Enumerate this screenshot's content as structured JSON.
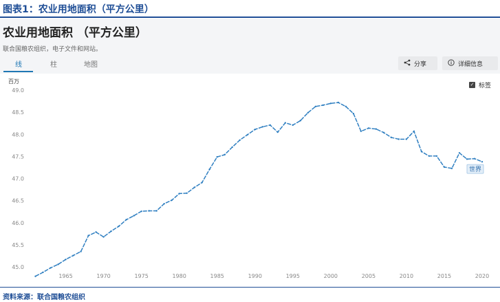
{
  "figure_title": "图表1：农业用地面积（平方公里）",
  "page_title": "农业用地面积 （平方公里）",
  "source": "联合国粮农组织，电子文件和网站。",
  "tabs": [
    {
      "label": "线",
      "active": true
    },
    {
      "label": "柱",
      "active": false
    },
    {
      "label": "地图",
      "active": false
    }
  ],
  "toolbar": {
    "share": "分享",
    "details": "详细信息",
    "share_icon": "share-icon",
    "details_icon": "info-icon"
  },
  "label_toggle": {
    "label": "标签",
    "checked": true
  },
  "footer": "资料来源：联合国粮农组织",
  "colors": {
    "line": "#2f7fc1",
    "title": "#1f4e96",
    "accent": "#1f77b4"
  },
  "chart_data": {
    "type": "line",
    "ylabel": "百万",
    "ylim": [
      44.8,
      49.0
    ],
    "yticks": [
      "49.0",
      "48.5",
      "48.0",
      "47.5",
      "47.0",
      "46.5",
      "46.0",
      "45.5",
      "45.0"
    ],
    "xlim": [
      1960.5,
      2021
    ],
    "xticks": [
      "1965",
      "1970",
      "1975",
      "1980",
      "1985",
      "1990",
      "1995",
      "2000",
      "2005",
      "2010",
      "2015",
      "2020"
    ],
    "grid": false,
    "series": [
      {
        "name": "世界",
        "x": [
          1961,
          1962,
          1963,
          1964,
          1965,
          1966,
          1967,
          1968,
          1969,
          1970,
          1971,
          1972,
          1973,
          1974,
          1975,
          1976,
          1977,
          1978,
          1979,
          1980,
          1981,
          1982,
          1983,
          1984,
          1985,
          1986,
          1987,
          1988,
          1989,
          1990,
          1991,
          1992,
          1993,
          1994,
          1995,
          1996,
          1997,
          1998,
          1999,
          2000,
          2001,
          2002,
          2003,
          2004,
          2005,
          2006,
          2007,
          2008,
          2009,
          2010,
          2011,
          2012,
          2013,
          2014,
          2015,
          2016,
          2017,
          2018,
          2019,
          2020
        ],
        "values": [
          44.79,
          44.88,
          44.98,
          45.06,
          45.17,
          45.26,
          45.35,
          45.71,
          45.79,
          45.68,
          45.81,
          45.92,
          46.07,
          46.16,
          46.26,
          46.27,
          46.27,
          46.43,
          46.51,
          46.66,
          46.67,
          46.8,
          46.91,
          47.21,
          47.49,
          47.54,
          47.71,
          47.87,
          47.99,
          48.11,
          48.17,
          48.21,
          48.05,
          48.26,
          48.21,
          48.31,
          48.49,
          48.63,
          48.66,
          48.7,
          48.72,
          48.63,
          48.47,
          48.07,
          48.14,
          48.12,
          48.04,
          47.93,
          47.89,
          47.89,
          48.07,
          47.61,
          47.51,
          47.51,
          47.26,
          47.23,
          47.58,
          47.44,
          47.45,
          47.38
        ]
      }
    ]
  }
}
